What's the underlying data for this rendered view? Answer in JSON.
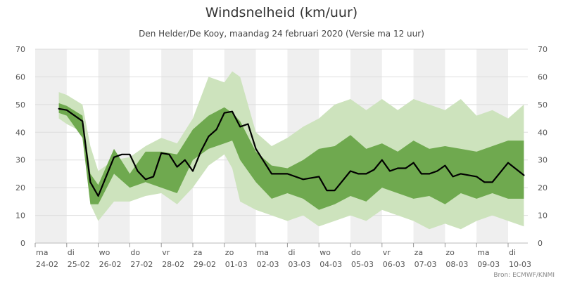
{
  "chart_data": {
    "type": "area",
    "title": "Windsnelheid (km/uur)",
    "subtitle": "Den Helder/De Kooy, maandag 24 februari 2020 (Versie ma 12 uur)",
    "source": "Bron: ECMWF/KNMI",
    "ylim": [
      0,
      70
    ],
    "yticks": [
      0,
      10,
      20,
      30,
      40,
      50,
      60,
      70
    ],
    "grid": true,
    "x_range_days": [
      0,
      15.5
    ],
    "x_ticks": [
      {
        "day": "ma",
        "date": "24-02"
      },
      {
        "day": "di",
        "date": "25-02"
      },
      {
        "day": "wo",
        "date": "26-02"
      },
      {
        "day": "do",
        "date": "27-02"
      },
      {
        "day": "vr",
        "date": "28-02"
      },
      {
        "day": "za",
        "date": "29-02"
      },
      {
        "day": "zo",
        "date": "01-03"
      },
      {
        "day": "ma",
        "date": "02-03"
      },
      {
        "day": "di",
        "date": "03-03"
      },
      {
        "day": "wo",
        "date": "04-03"
      },
      {
        "day": "do",
        "date": "05-03"
      },
      {
        "day": "vr",
        "date": "06-03"
      },
      {
        "day": "za",
        "date": "07-03"
      },
      {
        "day": "zo",
        "date": "08-03"
      },
      {
        "day": "ma",
        "date": "09-03"
      },
      {
        "day": "di",
        "date": "10-03"
      }
    ],
    "colors": {
      "outer_band": "#cde3bd",
      "inner_band": "#6fa94f",
      "median": "#000000",
      "shade": "#efefef"
    },
    "series": [
      {
        "key": "outer",
        "x": [
          0.75,
          1.0,
          1.5,
          1.75,
          2.0,
          2.5,
          3.0,
          3.5,
          4.0,
          4.5,
          5.0,
          5.5,
          6.0,
          6.25,
          6.5,
          7.0,
          7.5,
          8.0,
          8.5,
          9.0,
          9.5,
          10.0,
          10.5,
          11.0,
          11.5,
          12.0,
          12.5,
          13.0,
          13.5,
          14.0,
          14.5,
          15.0,
          15.5
        ],
        "upper": [
          54.5,
          53.5,
          50,
          35,
          26,
          30,
          31,
          35,
          38,
          36,
          45,
          60,
          58,
          62,
          60,
          40,
          35,
          38,
          42,
          45,
          50,
          52,
          48,
          52,
          48,
          52,
          50,
          48,
          52,
          46,
          48,
          45,
          50
        ],
        "lower": [
          45,
          43,
          40,
          14,
          8,
          15,
          15,
          17,
          18,
          14,
          20,
          28,
          32,
          27,
          15,
          12,
          10,
          8,
          10,
          6,
          8,
          10,
          8,
          12,
          10,
          8,
          5,
          7,
          5,
          8,
          10,
          8,
          6
        ]
      },
      {
        "key": "inner",
        "x": [
          0.75,
          1.0,
          1.5,
          1.75,
          2.0,
          2.5,
          3.0,
          3.5,
          4.0,
          4.5,
          5.0,
          5.5,
          6.0,
          6.25,
          6.5,
          7.0,
          7.5,
          8.0,
          8.5,
          9.0,
          9.5,
          10.0,
          10.5,
          11.0,
          11.5,
          12.0,
          12.5,
          13.0,
          13.5,
          14.0,
          14.5,
          15.0,
          15.5
        ],
        "upper": [
          50.5,
          49.5,
          46,
          25,
          21,
          34,
          25,
          33,
          33,
          32,
          41,
          46,
          49,
          47,
          44,
          33,
          28,
          27,
          30,
          34,
          35,
          39,
          34,
          36,
          33,
          37,
          34,
          35,
          34,
          33,
          35,
          37,
          37
        ],
        "lower": [
          47,
          46,
          38,
          14,
          14,
          25,
          20,
          22,
          20,
          18,
          30,
          34,
          36,
          37,
          30,
          22,
          16,
          18,
          16,
          12,
          14,
          17,
          15,
          20,
          18,
          16,
          17,
          14,
          18,
          16,
          18,
          16,
          16
        ]
      },
      {
        "key": "median",
        "x": [
          0.75,
          1.0,
          1.5,
          1.75,
          2.0,
          2.5,
          2.75,
          3.0,
          3.25,
          3.5,
          3.75,
          4.0,
          4.25,
          4.5,
          4.75,
          5.0,
          5.25,
          5.5,
          5.75,
          6.0,
          6.25,
          6.5,
          6.75,
          7.0,
          7.5,
          8.0,
          8.5,
          9.0,
          9.25,
          9.5,
          10.0,
          10.25,
          10.5,
          10.75,
          11.0,
          11.25,
          11.5,
          11.75,
          12.0,
          12.25,
          12.5,
          12.75,
          13.0,
          13.25,
          13.5,
          14.0,
          14.25,
          14.5,
          15.0,
          15.5
        ],
        "y": [
          48.5,
          48,
          44,
          22,
          17,
          31,
          32,
          32,
          26,
          23,
          24,
          32.5,
          32,
          27.5,
          30,
          26,
          33,
          38.5,
          41,
          47,
          47.5,
          42,
          43,
          34,
          25,
          25,
          23,
          24,
          19,
          19,
          26,
          25,
          25,
          26.5,
          30,
          26,
          27,
          27,
          29,
          25,
          25,
          26,
          28,
          24,
          25,
          24,
          22,
          22,
          29,
          24.5
        ]
      }
    ]
  }
}
